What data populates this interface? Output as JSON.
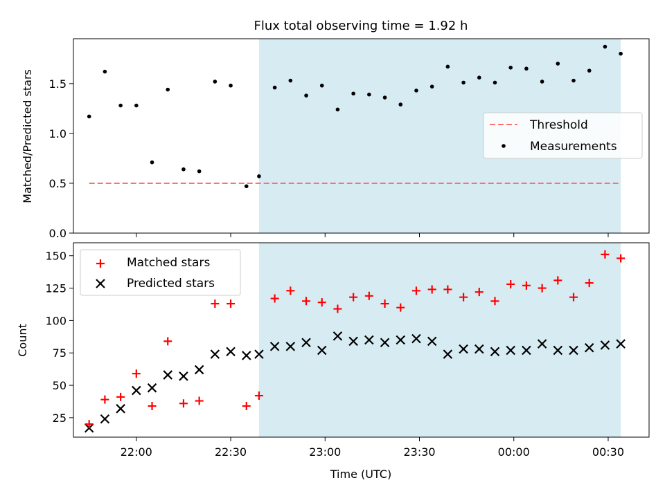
{
  "title": "Flux total observing time = 1.92 h",
  "colors": {
    "shade": "#add8e6",
    "threshold": "#ff7070",
    "matched": "#ff0000",
    "predicted": "#000000",
    "measurement": "#000000"
  },
  "chart_data": [
    {
      "type": "scatter",
      "ylabel": "Matched/Predicted stars",
      "ylim": [
        0,
        1.95
      ],
      "yticks": [
        0.0,
        0.5,
        1.0,
        1.5
      ],
      "ytick_labels": [
        "0.0",
        "0.5",
        "1.0",
        "1.5"
      ],
      "shaded_span": [
        "22:39",
        "00:34"
      ],
      "legend": {
        "placement": "center-right",
        "entries": [
          "Threshold",
          "Measurements"
        ]
      },
      "threshold": {
        "name": "Threshold",
        "value": 0.5,
        "x_start": "21:45",
        "x_end": "00:34"
      },
      "series": [
        {
          "name": "Measurements",
          "x": [
            "21:45",
            "21:50",
            "21:55",
            "22:00",
            "22:05",
            "22:10",
            "22:15",
            "22:20",
            "22:25",
            "22:30",
            "22:35",
            "22:39",
            "22:44",
            "22:49",
            "22:54",
            "22:59",
            "23:04",
            "23:09",
            "23:14",
            "23:19",
            "23:24",
            "23:29",
            "23:34",
            "23:39",
            "23:44",
            "23:49",
            "23:54",
            "23:59",
            "00:04",
            "00:09",
            "00:14",
            "00:19",
            "00:24",
            "00:29",
            "00:34"
          ],
          "values": [
            1.17,
            1.62,
            1.28,
            1.28,
            0.71,
            1.44,
            0.64,
            0.62,
            1.52,
            1.48,
            0.47,
            0.57,
            1.46,
            1.53,
            1.38,
            1.48,
            1.24,
            1.4,
            1.39,
            1.36,
            1.29,
            1.43,
            1.47,
            1.67,
            1.51,
            1.56,
            1.51,
            1.66,
            1.65,
            1.52,
            1.7,
            1.53,
            1.63,
            1.87,
            1.8
          ]
        }
      ]
    },
    {
      "type": "scatter",
      "xlabel": "Time (UTC)",
      "ylabel": "Count",
      "ylim": [
        10,
        160
      ],
      "yticks": [
        25,
        50,
        75,
        100,
        125,
        150
      ],
      "ytick_labels": [
        "25",
        "50",
        "75",
        "100",
        "125",
        "150"
      ],
      "xtick_labels": [
        "22:00",
        "22:30",
        "23:00",
        "23:30",
        "00:00",
        "00:30"
      ],
      "shaded_span": [
        "22:39",
        "00:34"
      ],
      "legend": {
        "placement": "top-left",
        "entries": [
          "Matched stars",
          "Predicted stars"
        ]
      },
      "series": [
        {
          "name": "Matched stars",
          "x": [
            "21:45",
            "21:50",
            "21:55",
            "22:00",
            "22:05",
            "22:10",
            "22:15",
            "22:20",
            "22:25",
            "22:30",
            "22:35",
            "22:39",
            "22:44",
            "22:49",
            "22:54",
            "22:59",
            "23:04",
            "23:09",
            "23:14",
            "23:19",
            "23:24",
            "23:29",
            "23:34",
            "23:39",
            "23:44",
            "23:49",
            "23:54",
            "23:59",
            "00:04",
            "00:09",
            "00:14",
            "00:19",
            "00:24",
            "00:29",
            "00:34"
          ],
          "values": [
            20,
            39,
            41,
            59,
            34,
            84,
            36,
            38,
            113,
            113,
            34,
            42,
            117,
            123,
            115,
            114,
            109,
            118,
            119,
            113,
            110,
            123,
            124,
            124,
            118,
            122,
            115,
            128,
            127,
            125,
            131,
            118,
            129,
            151,
            148
          ]
        },
        {
          "name": "Predicted stars",
          "x": [
            "21:45",
            "21:50",
            "21:55",
            "22:00",
            "22:05",
            "22:10",
            "22:15",
            "22:20",
            "22:25",
            "22:30",
            "22:35",
            "22:39",
            "22:44",
            "22:49",
            "22:54",
            "22:59",
            "23:04",
            "23:09",
            "23:14",
            "23:19",
            "23:24",
            "23:29",
            "23:34",
            "23:39",
            "23:44",
            "23:49",
            "23:54",
            "23:59",
            "00:04",
            "00:09",
            "00:14",
            "00:19",
            "00:24",
            "00:29",
            "00:34"
          ],
          "values": [
            17,
            24,
            32,
            46,
            48,
            58,
            57,
            62,
            74,
            76,
            73,
            74,
            80,
            80,
            83,
            77,
            88,
            84,
            85,
            83,
            85,
            86,
            84,
            74,
            78,
            78,
            76,
            77,
            77,
            82,
            77,
            77,
            79,
            81,
            82
          ]
        }
      ]
    }
  ]
}
